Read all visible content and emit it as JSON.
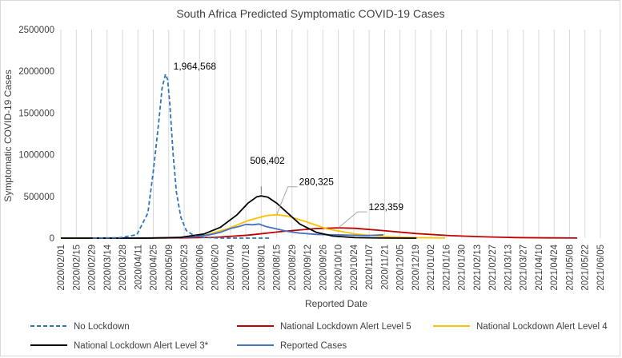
{
  "chart_data": {
    "type": "line",
    "title": "South Africa Predicted Symptomatic COVID-19 Cases",
    "xlabel": "Reported Date",
    "ylabel": "Symptomatic COVID-19 Cases",
    "ylim": [
      0,
      2500000
    ],
    "yticks": [
      0,
      500000,
      1000000,
      1500000,
      2000000,
      2500000
    ],
    "ytick_labels": [
      "0",
      "500000",
      "1000000",
      "1500000",
      "2000000",
      "2500000"
    ],
    "x_start": "2020/02/01",
    "x_end": "2021/06/05",
    "xtick_labels": [
      "2020/02/01",
      "2020/02/15",
      "2020/02/29",
      "2020/03/14",
      "2020/03/28",
      "2020/04/11",
      "2020/04/25",
      "2020/05/09",
      "2020/05/23",
      "2020/06/06",
      "2020/06/20",
      "2020/07/04",
      "2020/07/18",
      "2020/08/01",
      "2020/08/15",
      "2020/08/29",
      "2020/09/12",
      "2020/09/26",
      "2020/10/10",
      "2020/10/24",
      "2020/11/07",
      "2020/11/21",
      "2020/12/05",
      "2020/12/19",
      "2021/01/02",
      "2021/01/16",
      "2021/01/30",
      "2021/02/13",
      "2021/02/27",
      "2021/03/13",
      "2021/03/27",
      "2021/04/10",
      "2021/04/24",
      "2021/05/08",
      "2021/05/22",
      "2021/06/05"
    ],
    "grid": "vertical",
    "legend_position": "bottom",
    "series": [
      {
        "name": "No Lockdown",
        "color": "#2e75b6",
        "style": "dashed",
        "x": [
          "2020/03/01",
          "2020/03/25",
          "2020/04/10",
          "2020/04/20",
          "2020/04/25",
          "2020/04/30",
          "2020/05/03",
          "2020/05/06",
          "2020/05/08",
          "2020/05/10",
          "2020/05/13",
          "2020/05/16",
          "2020/05/20",
          "2020/05/25",
          "2020/06/01",
          "2020/06/10",
          "2020/06/25",
          "2020/07/20",
          "2020/08/10"
        ],
        "y": [
          0,
          5000,
          40000,
          300000,
          800000,
          1400000,
          1800000,
          1964568,
          1900000,
          1600000,
          1000000,
          550000,
          250000,
          90000,
          30000,
          8000,
          1000,
          0,
          0
        ]
      },
      {
        "name": "National Lockdown Alert Level 5",
        "color": "#c00000",
        "style": "solid",
        "x": [
          "2020/02/01",
          "2020/04/01",
          "2020/05/15",
          "2020/06/20",
          "2020/07/20",
          "2020/08/20",
          "2020/09/20",
          "2020/10/10",
          "2020/10/25",
          "2020/11/20",
          "2020/12/20",
          "2021/01/20",
          "2021/02/20",
          "2021/03/20",
          "2021/04/20",
          "2021/05/15"
        ],
        "y": [
          0,
          0,
          2000,
          10000,
          35000,
          80000,
          115000,
          123359,
          118000,
          90000,
          55000,
          30000,
          15000,
          7000,
          3000,
          1000
        ]
      },
      {
        "name": "National Lockdown Alert Level 4",
        "color": "#ffc000",
        "style": "solid",
        "x": [
          "2020/02/01",
          "2020/04/10",
          "2020/05/15",
          "2020/06/10",
          "2020/07/01",
          "2020/07/20",
          "2020/08/05",
          "2020/08/15",
          "2020/08/25",
          "2020/09/10",
          "2020/09/30",
          "2020/10/25",
          "2020/11/20",
          "2020/12/20",
          "2021/01/15"
        ],
        "y": [
          0,
          0,
          5000,
          30000,
          110000,
          210000,
          268000,
          280325,
          265000,
          200000,
          110000,
          50000,
          20000,
          6000,
          1000
        ]
      },
      {
        "name": "National Lockdown Alert Level 3*",
        "color": "#000000",
        "style": "solid",
        "x": [
          "2020/02/01",
          "2020/04/20",
          "2020/05/20",
          "2020/06/10",
          "2020/06/25",
          "2020/07/10",
          "2020/07/20",
          "2020/07/28",
          "2020/08/01",
          "2020/08/07",
          "2020/08/15",
          "2020/08/25",
          "2020/09/05",
          "2020/09/20",
          "2020/10/05",
          "2020/10/25",
          "2020/11/20",
          "2020/12/20"
        ],
        "y": [
          0,
          0,
          10000,
          50000,
          130000,
          280000,
          420000,
          495000,
          506402,
          490000,
          420000,
          300000,
          170000,
          70000,
          25000,
          6000,
          1000,
          0
        ]
      },
      {
        "name": "Reported Cases",
        "color": "#4472c4",
        "style": "solid",
        "x": [
          "2020/03/05",
          "2020/04/15",
          "2020/05/15",
          "2020/06/01",
          "2020/06/15",
          "2020/06/25",
          "2020/07/05",
          "2020/07/12",
          "2020/07/18",
          "2020/07/24",
          "2020/07/30",
          "2020/08/05",
          "2020/08/15",
          "2020/08/25",
          "2020/09/05",
          "2020/09/20",
          "2020/10/05",
          "2020/10/20",
          "2020/11/05",
          "2020/11/20"
        ],
        "y": [
          0,
          2000,
          5000,
          15000,
          40000,
          70000,
          120000,
          140000,
          165000,
          160000,
          170000,
          140000,
          110000,
          80000,
          60000,
          45000,
          40000,
          35000,
          30000,
          40000
        ]
      }
    ],
    "annotations": [
      {
        "text": "1,964,568",
        "x": "2020/05/06",
        "y": 1964568
      },
      {
        "text": "506,402",
        "x": "2020/08/01",
        "y": 506402
      },
      {
        "text": "280,325",
        "x": "2020/08/15",
        "y": 280325
      },
      {
        "text": "123,359",
        "x": "2020/10/10",
        "y": 123359
      }
    ]
  }
}
